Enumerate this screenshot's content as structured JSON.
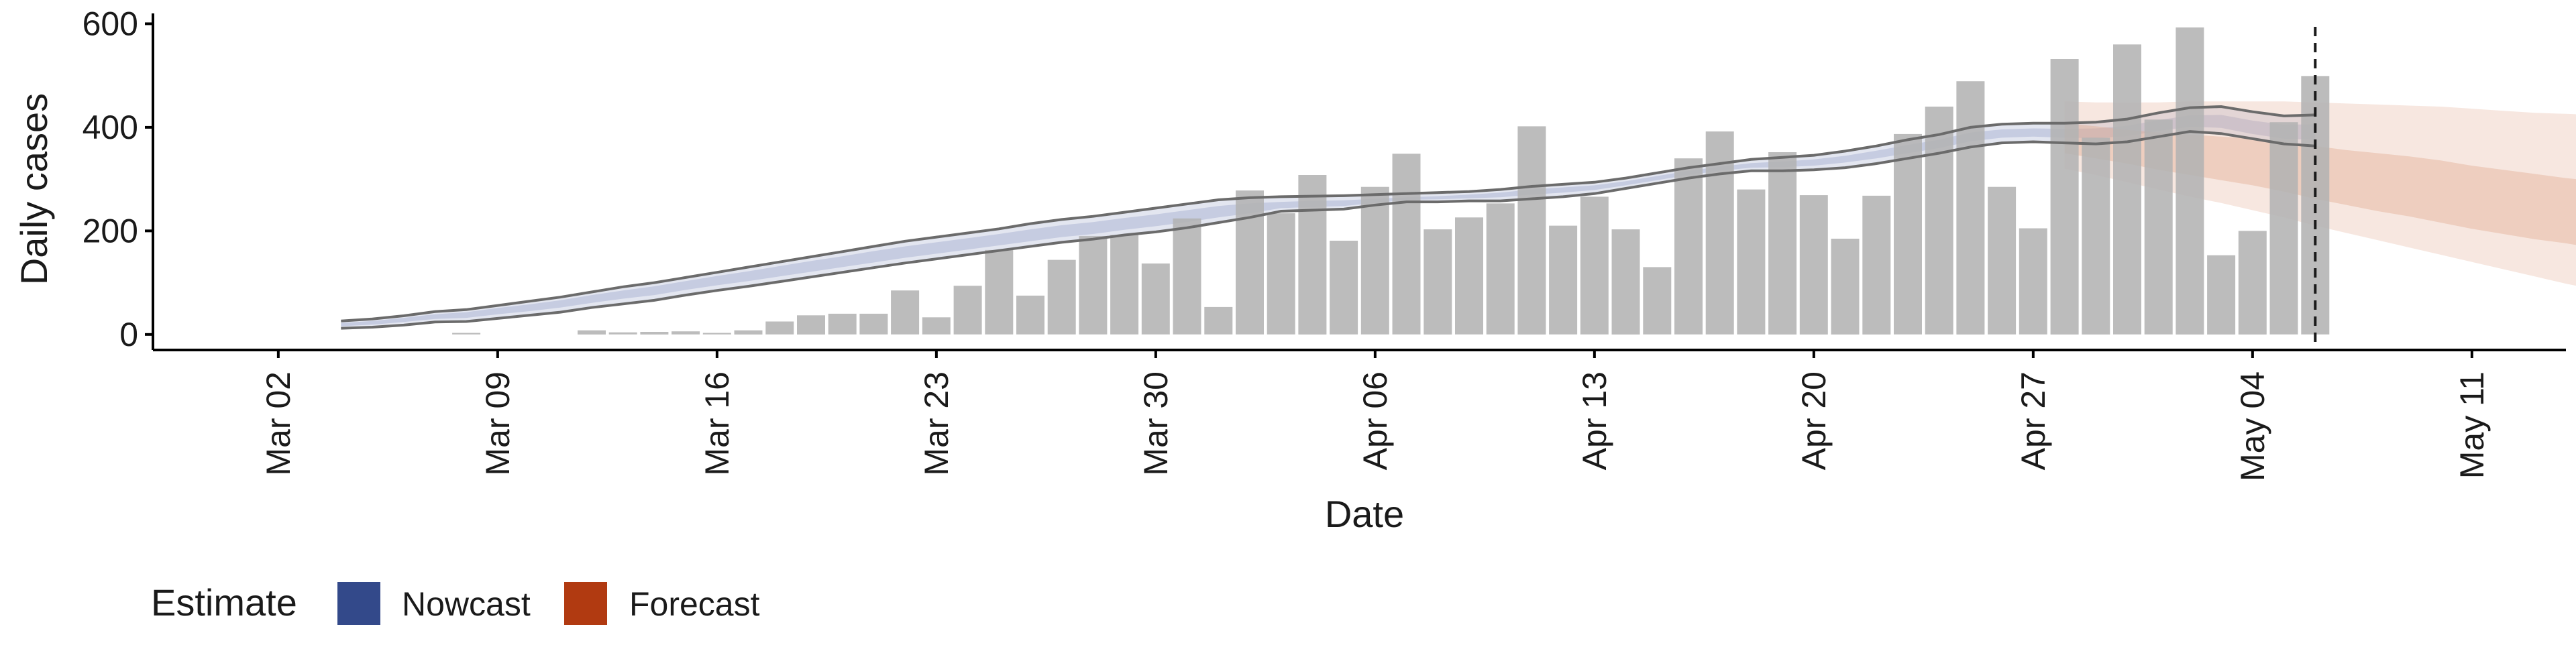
{
  "chart_data": {
    "type": "bar",
    "title": "",
    "xlabel": "Date",
    "ylabel": "Daily cases",
    "x_ticks": [
      {
        "date": "2020-03-02",
        "label": "Mar 02"
      },
      {
        "date": "2020-03-09",
        "label": "Mar 09"
      },
      {
        "date": "2020-03-16",
        "label": "Mar 16"
      },
      {
        "date": "2020-03-23",
        "label": "Mar 23"
      },
      {
        "date": "2020-03-30",
        "label": "Mar 30"
      },
      {
        "date": "2020-04-06",
        "label": "Apr 06"
      },
      {
        "date": "2020-04-13",
        "label": "Apr 13"
      },
      {
        "date": "2020-04-20",
        "label": "Apr 20"
      },
      {
        "date": "2020-04-27",
        "label": "Apr 27"
      },
      {
        "date": "2020-05-04",
        "label": "May 04"
      },
      {
        "date": "2020-05-11",
        "label": "May 11"
      }
    ],
    "y_ticks": [
      0,
      200,
      400,
      600
    ],
    "ylim": [
      -30,
      620
    ],
    "xlim": [
      "2020-02-27",
      "2020-05-14"
    ],
    "grid": false,
    "legend": {
      "position": "bottom-left",
      "title": "Estimate",
      "items": [
        {
          "label": "Nowcast",
          "color": "#33498a"
        },
        {
          "label": "Forecast",
          "color": "#b13a11"
        }
      ]
    },
    "colors": {
      "bars": "#b3b3b3",
      "nowcast": "#33498a",
      "nowcast_band": "#aeb7d5",
      "forecast": "#b13a11",
      "forecast_band": "#e2a98e",
      "outline": "#6b6b6b",
      "vline": "#1a1a1a"
    },
    "reference_line": {
      "date": "2020-05-06",
      "style": "dashed"
    },
    "bars": {
      "start_date": "2020-03-08",
      "values": [
        3,
        0,
        0,
        0,
        8,
        4,
        5,
        6,
        3,
        8,
        25,
        37,
        40,
        40,
        85,
        33,
        94,
        163,
        75,
        144,
        190,
        192,
        137,
        224,
        53,
        278,
        234,
        308,
        181,
        285,
        349,
        203,
        226,
        253,
        402,
        210,
        266,
        203,
        130,
        340,
        392,
        280,
        352,
        269,
        185,
        268,
        387,
        440,
        489,
        285,
        205,
        532,
        380,
        560,
        415,
        593,
        153,
        200,
        410,
        499
      ]
    },
    "nowcast": {
      "start_date": "2020-03-04",
      "outer_upper": [
        26,
        30,
        36,
        44,
        48,
        56,
        64,
        72,
        82,
        92,
        100,
        110,
        120,
        130,
        140,
        150,
        160,
        170,
        180,
        188,
        196,
        204,
        214,
        222,
        228,
        236,
        244,
        252,
        260,
        264,
        266,
        267,
        268,
        270,
        272,
        274,
        276,
        280,
        286,
        290,
        294,
        302,
        312,
        322,
        330,
        338,
        342,
        346,
        354,
        364,
        376,
        386,
        400,
        406,
        408,
        408,
        410,
        416,
        428,
        438,
        440,
        430,
        422,
        424
      ],
      "inner_upper": [
        22,
        26,
        32,
        39,
        43,
        51,
        58,
        66,
        76,
        85,
        93,
        103,
        113,
        122,
        132,
        142,
        151,
        161,
        170,
        178,
        186,
        194,
        203,
        211,
        217,
        225,
        232,
        240,
        248,
        253,
        256,
        258,
        259,
        262,
        265,
        267,
        270,
        274,
        280,
        284,
        288,
        296,
        306,
        316,
        324,
        331,
        334,
        338,
        345,
        355,
        366,
        376,
        390,
        396,
        398,
        397,
        398,
        403,
        414,
        423,
        424,
        413,
        405,
        406
      ],
      "inner_lower": [
        16,
        19,
        24,
        30,
        32,
        39,
        45,
        52,
        61,
        69,
        76,
        86,
        95,
        103,
        112,
        121,
        130,
        139,
        148,
        156,
        164,
        172,
        180,
        188,
        194,
        202,
        209,
        217,
        226,
        234,
        244,
        246,
        248,
        254,
        260,
        261,
        263,
        265,
        270,
        274,
        279,
        288,
        298,
        308,
        316,
        322,
        323,
        326,
        332,
        340,
        350,
        360,
        373,
        380,
        382,
        380,
        379,
        383,
        393,
        401,
        399,
        387,
        378,
        376
      ],
      "outer_lower": [
        12,
        14,
        18,
        24,
        25,
        31,
        37,
        43,
        52,
        59,
        66,
        76,
        85,
        93,
        102,
        111,
        120,
        129,
        138,
        146,
        154,
        162,
        170,
        178,
        184,
        192,
        198,
        206,
        216,
        226,
        238,
        240,
        242,
        250,
        256,
        256,
        258,
        258,
        262,
        266,
        272,
        282,
        292,
        302,
        310,
        316,
        316,
        318,
        322,
        330,
        340,
        350,
        362,
        370,
        372,
        370,
        368,
        372,
        382,
        392,
        388,
        378,
        368,
        364
      ]
    },
    "forecast": {
      "start_date": "2020-04-28",
      "outer_upper": [
        450,
        448,
        448,
        448,
        450,
        450,
        450,
        450,
        448,
        446,
        444,
        442,
        440,
        436,
        432,
        428,
        426,
        424,
        418,
        410,
        404
      ],
      "inner_upper": [
        408,
        402,
        395,
        390,
        386,
        382,
        378,
        372,
        364,
        356,
        350,
        344,
        336,
        326,
        318,
        310,
        302,
        296,
        292,
        288,
        286
      ],
      "inner_lower": [
        350,
        340,
        330,
        318,
        308,
        298,
        288,
        276,
        262,
        250,
        238,
        228,
        216,
        204,
        194,
        184,
        176,
        166,
        156,
        148,
        140
      ],
      "outer_lower": [
        320,
        308,
        294,
        280,
        266,
        254,
        240,
        226,
        210,
        196,
        182,
        168,
        154,
        140,
        126,
        112,
        98,
        86,
        72,
        58,
        48
      ]
    }
  }
}
